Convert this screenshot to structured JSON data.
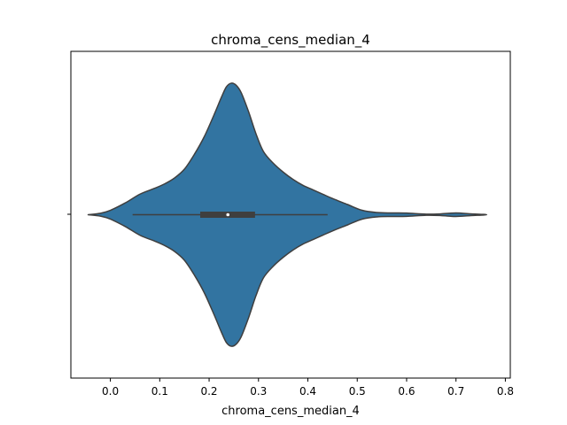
{
  "chart_data": {
    "type": "violin",
    "title": "chroma_cens_median_4",
    "xlabel": "chroma_cens_median_4",
    "ylabel": "",
    "xlim": [
      -0.08,
      0.81
    ],
    "x_ticks": [
      0.0,
      0.1,
      0.2,
      0.3,
      0.4,
      0.5,
      0.6,
      0.7,
      0.8
    ],
    "x_tick_labels": [
      "0.0",
      "0.1",
      "0.2",
      "0.3",
      "0.4",
      "0.5",
      "0.6",
      "0.7",
      "0.8"
    ],
    "grid": false,
    "legend": "none",
    "color": "#3274a1",
    "edge_color": "#3f3f3f",
    "density_profile": [
      [
        -0.045,
        0.0
      ],
      [
        -0.02,
        0.01
      ],
      [
        0.0,
        0.03
      ],
      [
        0.03,
        0.08
      ],
      [
        0.06,
        0.14
      ],
      [
        0.09,
        0.18
      ],
      [
        0.11,
        0.21
      ],
      [
        0.13,
        0.25
      ],
      [
        0.15,
        0.31
      ],
      [
        0.17,
        0.41
      ],
      [
        0.19,
        0.53
      ],
      [
        0.21,
        0.68
      ],
      [
        0.225,
        0.8
      ],
      [
        0.235,
        0.87
      ],
      [
        0.245,
        0.895
      ],
      [
        0.255,
        0.88
      ],
      [
        0.265,
        0.83
      ],
      [
        0.28,
        0.7
      ],
      [
        0.295,
        0.55
      ],
      [
        0.31,
        0.43
      ],
      [
        0.33,
        0.35
      ],
      [
        0.35,
        0.29
      ],
      [
        0.37,
        0.24
      ],
      [
        0.39,
        0.2
      ],
      [
        0.41,
        0.17
      ],
      [
        0.43,
        0.14
      ],
      [
        0.45,
        0.11
      ],
      [
        0.48,
        0.07
      ],
      [
        0.51,
        0.03
      ],
      [
        0.54,
        0.015
      ],
      [
        0.57,
        0.012
      ],
      [
        0.6,
        0.011
      ],
      [
        0.64,
        0.004
      ],
      [
        0.67,
        0.006
      ],
      [
        0.7,
        0.012
      ],
      [
        0.73,
        0.006
      ],
      [
        0.762,
        0.0
      ]
    ],
    "whiskers": [
      0.045,
      0.44
    ],
    "quartiles": [
      0.182,
      0.293
    ],
    "median": 0.238
  }
}
